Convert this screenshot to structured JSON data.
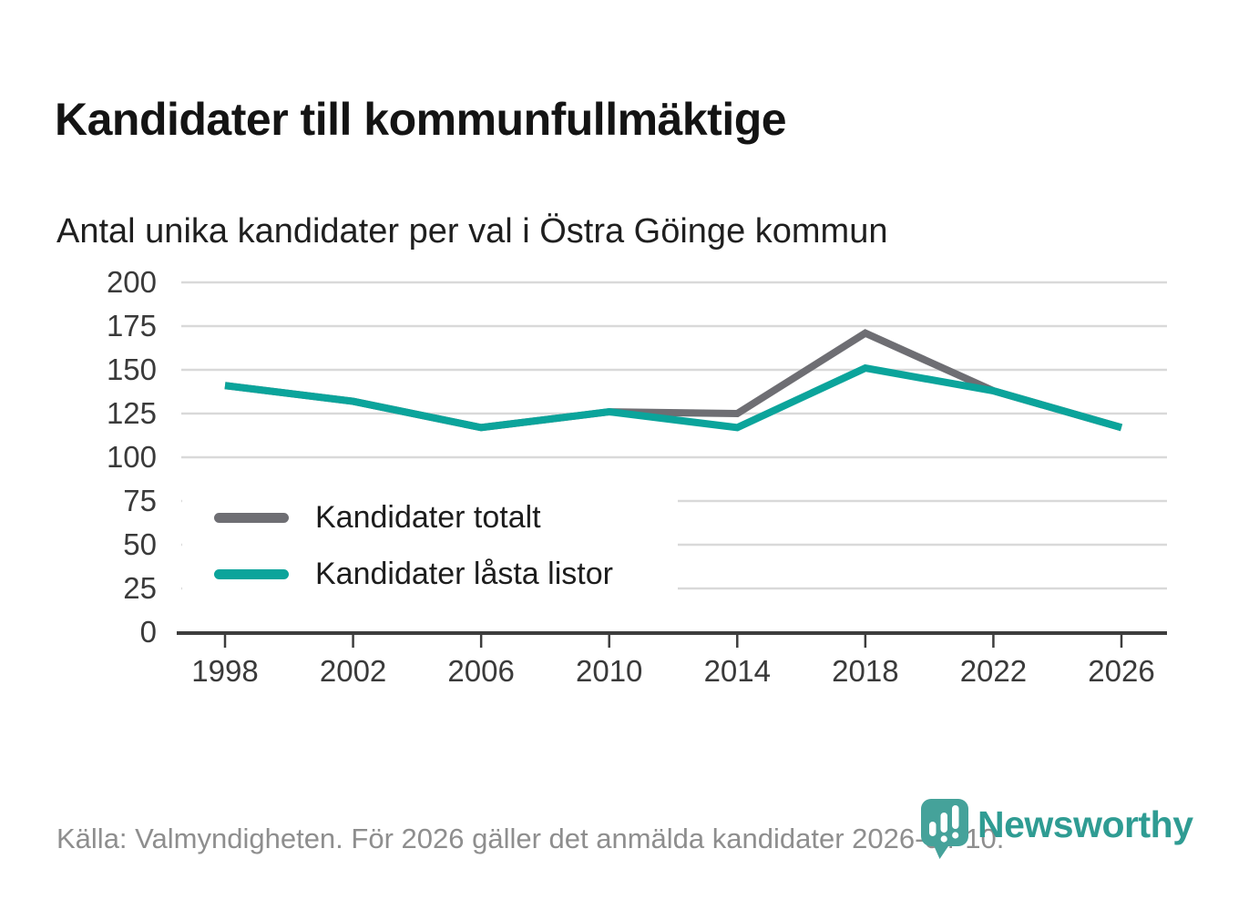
{
  "header": {
    "title": "Kandidater till kommunfullmäktige",
    "subtitle": "Antal unika kandidater per val i Östra Göinge kommun"
  },
  "chart_data": {
    "type": "line",
    "title": "Kandidater till kommunfullmäktige",
    "subtitle": "Antal unika kandidater per val i Östra Göinge kommun",
    "x": [
      1998,
      2002,
      2006,
      2010,
      2014,
      2018,
      2022,
      2026
    ],
    "series": [
      {
        "name": "Kandidater totalt",
        "color": "#6e6e73",
        "values": [
          141,
          132,
          117,
          126,
          125,
          171,
          138,
          117
        ]
      },
      {
        "name": "Kandidater låsta listor",
        "color": "#0ba49b",
        "values": [
          141,
          132,
          117,
          126,
          117,
          151,
          138,
          117
        ]
      }
    ],
    "xlabel": "",
    "ylabel": "",
    "ylim": [
      0,
      200
    ],
    "y_ticks": [
      0,
      25,
      50,
      75,
      100,
      125,
      150,
      175,
      200
    ],
    "grid": "horizontal",
    "legend_position": "inside-lower-left"
  },
  "footer": {
    "source_text": "Källa: Valmyndigheten. För 2026 gäller det anmälda kandidater 2026-04-10.",
    "brand_name": "Newsworthy"
  },
  "colors": {
    "series_total": "#6e6e73",
    "series_locked_lists": "#0ba49b",
    "gridline": "#d9d9d9",
    "axis": "#3d3d3d",
    "brand_teal": "#2f9c93",
    "brand_icon_teal": "#45a29a"
  }
}
